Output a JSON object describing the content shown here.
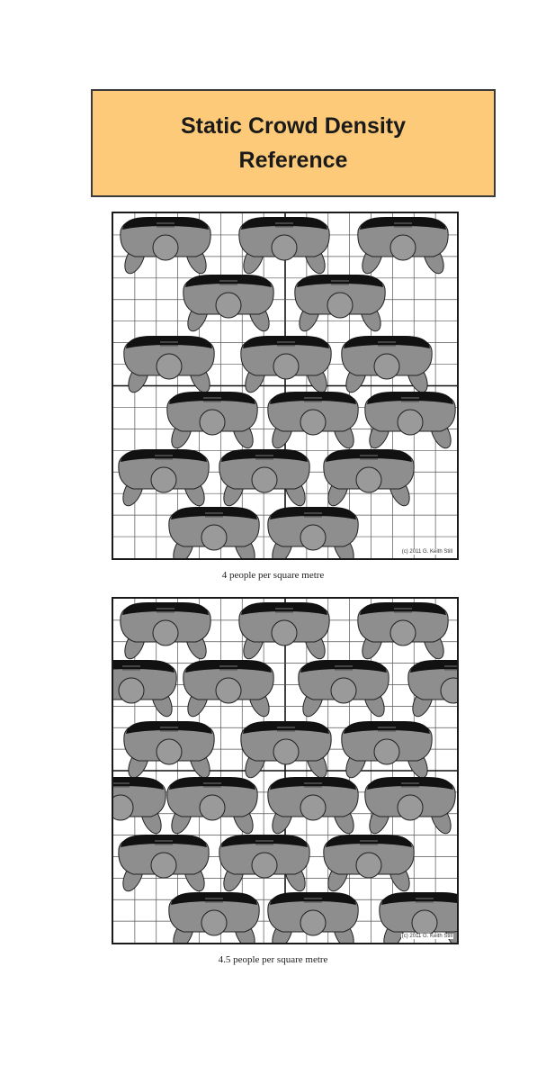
{
  "title": {
    "line1": "Static Crowd Density",
    "line2": "Reference"
  },
  "diagrams": [
    {
      "caption": "4 people per square metre",
      "density": 4,
      "people_count": 16,
      "copyright": "(c) 2011 G. Keith Still"
    },
    {
      "caption": "4.5 people per square metre",
      "density": 4.5,
      "people_count": 18,
      "copyright": "(c) 2011 G. Keith Still"
    }
  ],
  "colors": {
    "title_background": "#fcca78",
    "title_border": "#3a3a3a",
    "grid_line": "#555555",
    "grid_major": "#111111",
    "person_body": "#8e8e8e",
    "person_hair": "#111111"
  }
}
